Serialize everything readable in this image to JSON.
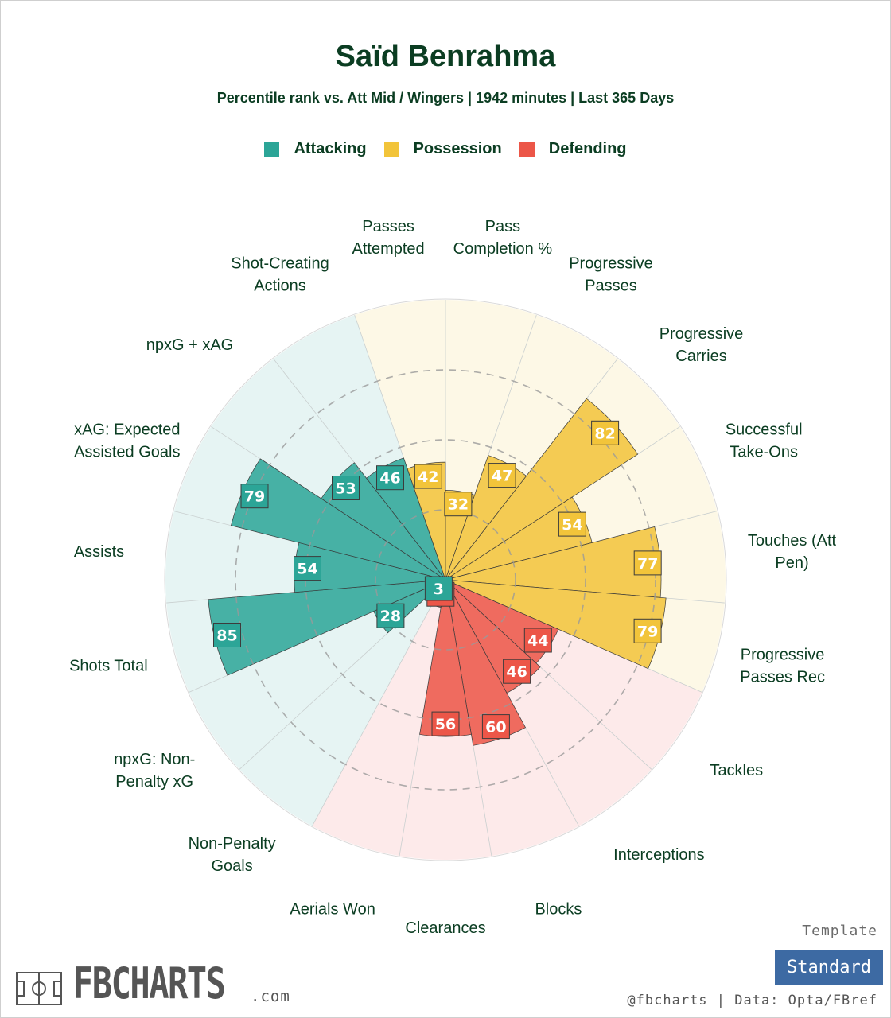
{
  "header": {
    "title": "Saïd Benrahma",
    "subtitle": "Percentile rank vs. Att Mid / Wingers | 1942 minutes | Last 365 Days"
  },
  "legend": [
    {
      "label": "Attacking",
      "color": "#2ca597"
    },
    {
      "label": "Possession",
      "color": "#f2c43a"
    },
    {
      "label": "Defending",
      "color": "#ec5648"
    }
  ],
  "chart_data": {
    "type": "polar-bar",
    "title": "Saïd Benrahma",
    "range": [
      0,
      100
    ],
    "gridlines": [
      25,
      50,
      75
    ],
    "categories": [
      {
        "label": "npxG + xAG",
        "value": 53,
        "group": "Attacking"
      },
      {
        "label": "Shot-Creating Actions",
        "value": 46,
        "group": "Attacking"
      },
      {
        "label": "Passes Attempted",
        "value": 42,
        "group": "Possession"
      },
      {
        "label": "Pass Completion %",
        "value": 32,
        "group": "Possession"
      },
      {
        "label": "Progressive Passes",
        "value": 47,
        "group": "Possession"
      },
      {
        "label": "Progressive Carries",
        "value": 82,
        "group": "Possession"
      },
      {
        "label": "Successful Take-Ons",
        "value": 54,
        "group": "Possession"
      },
      {
        "label": "Touches (Att Pen)",
        "value": 77,
        "group": "Possession"
      },
      {
        "label": "Progressive Passes Rec",
        "value": 79,
        "group": "Possession"
      },
      {
        "label": "Tackles",
        "value": 44,
        "group": "Defending"
      },
      {
        "label": "Interceptions",
        "value": 46,
        "group": "Defending"
      },
      {
        "label": "Blocks",
        "value": 60,
        "group": "Defending"
      },
      {
        "label": "Clearances",
        "value": 56,
        "group": "Defending"
      },
      {
        "label": "Aerials Won",
        "value": 10,
        "group": "Defending"
      },
      {
        "label": "Non-Penalty Goals",
        "value": 3,
        "group": "Attacking"
      },
      {
        "label": "npxG: Non-Penalty xG",
        "value": 28,
        "group": "Attacking"
      },
      {
        "label": "Shots Total",
        "value": 85,
        "group": "Attacking"
      },
      {
        "label": "Assists",
        "value": 54,
        "group": "Attacking"
      },
      {
        "label": "xAG: Expected Assisted Goals",
        "value": 79,
        "group": "Attacking"
      }
    ],
    "label_lines": [
      [
        "npxG + xAG"
      ],
      [
        "Shot-Creating",
        "Actions"
      ],
      [
        "Passes",
        "Attempted"
      ],
      [
        "Pass",
        "Completion %"
      ],
      [
        "Progressive",
        "Passes"
      ],
      [
        "Progressive",
        "Carries"
      ],
      [
        "Successful",
        "Take-Ons"
      ],
      [
        "Touches (Att",
        "Pen)"
      ],
      [
        "Progressive",
        "Passes Rec"
      ],
      [
        "Tackles"
      ],
      [
        "Interceptions"
      ],
      [
        "Blocks"
      ],
      [
        "Clearances"
      ],
      [
        "Aerials Won"
      ],
      [
        "Non-Penalty",
        "Goals"
      ],
      [
        "npxG: Non-",
        "Penalty xG"
      ],
      [
        "Shots Total"
      ],
      [
        "Assists"
      ],
      [
        "xAG: Expected",
        "Assisted Goals"
      ]
    ],
    "group_colors": {
      "Attacking": {
        "bar": "#2ca597",
        "bg": "#e6f4f3"
      },
      "Possession": {
        "bar": "#f2c43a",
        "bg": "#fdf8e6"
      },
      "Defending": {
        "bar": "#ec5648",
        "bg": "#fdeaea"
      }
    }
  },
  "footer": {
    "template_label": "Template",
    "template_button": "Standard",
    "credit": "@fbcharts | Data: Opta/FBref",
    "logo_text": "FBCHARTS",
    "logo_suffix": ".com"
  }
}
